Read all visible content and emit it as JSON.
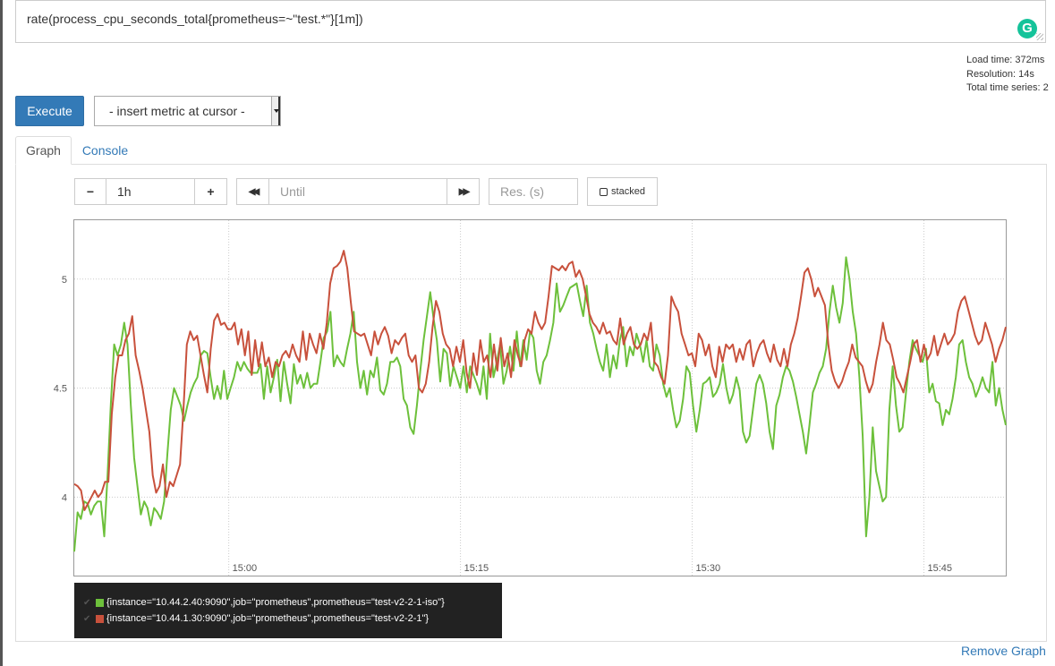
{
  "query": {
    "expression": "rate(process_cpu_seconds_total{prometheus=~\"test.*\"}[1m])",
    "grammarly_badge": "G"
  },
  "stats": {
    "load_time": "Load time: 372ms",
    "resolution": "Resolution: 14s",
    "total_series": "Total time series: 2"
  },
  "toolbar": {
    "execute_label": "Execute",
    "metric_select_value": "- insert metric at cursor -"
  },
  "tabs": [
    {
      "label": "Graph",
      "active": true
    },
    {
      "label": "Console",
      "active": false
    }
  ],
  "graph_controls": {
    "minus_label": "−",
    "range_value": "1h",
    "plus_label": "+",
    "back_label": "◀◀",
    "until_placeholder": "Until",
    "forward_label": "▶▶",
    "res_placeholder": "Res. (s)",
    "stacked_label": "stacked"
  },
  "colors": {
    "series_green": "#6dc03b",
    "series_red": "#c8513c",
    "link_blue": "#337ab7",
    "execute_blue": "#337ab7"
  },
  "chart_data": {
    "type": "line",
    "x_ticks": [
      "15:00",
      "15:15",
      "15:30",
      "15:45"
    ],
    "y_ticks": [
      "4",
      "4.5",
      "5"
    ],
    "ylim": [
      3.64,
      5.27
    ],
    "x_range_minutes": [
      -10.0,
      50.3
    ],
    "grid": true,
    "legend_position": "bottom-left",
    "series": [
      {
        "name": "{instance=\"10.44.2.40:9090\",job=\"prometheus\",prometheus=\"test-v2-2-1-iso\"}",
        "color": "#6dc03b",
        "values": [
          3.75,
          3.93,
          3.9,
          3.98,
          3.97,
          3.92,
          3.96,
          3.98,
          3.98,
          3.82,
          4.1,
          4.43,
          4.7,
          4.65,
          4.7,
          4.8,
          4.7,
          4.42,
          4.18,
          4.05,
          3.92,
          3.98,
          3.95,
          3.87,
          3.95,
          3.93,
          3.9,
          3.98,
          4.2,
          4.4,
          4.5,
          4.46,
          4.42,
          4.35,
          4.42,
          4.48,
          4.52,
          4.55,
          4.65,
          4.67,
          4.66,
          4.55,
          4.45,
          4.51,
          4.45,
          4.58,
          4.45,
          4.5,
          4.55,
          4.62,
          4.58,
          4.62,
          4.59,
          4.57,
          4.57,
          4.57,
          4.61,
          4.45,
          4.6,
          4.48,
          4.55,
          4.63,
          4.44,
          4.62,
          4.52,
          4.43,
          4.61,
          4.52,
          4.56,
          4.5,
          4.57,
          4.5,
          4.52,
          4.52,
          4.62,
          4.73,
          4.76,
          4.85,
          4.6,
          4.65,
          4.62,
          4.6,
          4.68,
          4.75,
          4.85,
          4.62,
          4.5,
          4.58,
          4.47,
          4.58,
          4.55,
          4.64,
          4.49,
          4.47,
          4.52,
          4.62,
          4.62,
          4.64,
          4.6,
          4.45,
          4.42,
          4.32,
          4.29,
          4.42,
          4.58,
          4.72,
          4.83,
          4.94,
          4.82,
          4.72,
          4.53,
          4.68,
          4.66,
          4.51,
          4.6,
          4.55,
          4.5,
          4.6,
          4.48,
          4.6,
          4.56,
          4.52,
          4.47,
          4.6,
          4.45,
          4.75,
          4.55,
          4.62,
          4.7,
          4.52,
          4.58,
          4.69,
          4.58,
          4.76,
          4.6,
          4.72,
          4.63,
          4.76,
          4.73,
          4.58,
          4.52,
          4.62,
          4.65,
          4.72,
          4.8,
          4.98,
          4.85,
          4.88,
          4.92,
          4.96,
          4.97,
          4.98,
          4.9,
          4.83,
          4.97,
          4.8,
          4.75,
          4.68,
          4.62,
          4.58,
          4.7,
          4.55,
          4.65,
          4.59,
          4.72,
          4.78,
          4.6,
          4.69,
          4.65,
          4.75,
          4.7,
          4.62,
          4.72,
          4.6,
          4.58,
          4.7,
          4.65,
          4.52,
          4.46,
          4.5,
          4.4,
          4.32,
          4.35,
          4.45,
          4.6,
          4.57,
          4.42,
          4.3,
          4.4,
          4.52,
          4.53,
          4.55,
          4.46,
          4.48,
          4.52,
          4.61,
          4.5,
          4.43,
          4.47,
          4.55,
          4.49,
          4.3,
          4.25,
          4.28,
          4.4,
          4.52,
          4.56,
          4.52,
          4.43,
          4.3,
          4.22,
          4.42,
          4.47,
          4.55,
          4.6,
          4.58,
          4.53,
          4.46,
          4.38,
          4.3,
          4.2,
          4.33,
          4.48,
          4.52,
          4.57,
          4.6,
          4.68,
          4.85,
          4.97,
          4.87,
          4.8,
          4.89,
          5.1,
          5.0,
          4.85,
          4.75,
          4.55,
          4.28,
          3.82,
          4.0,
          4.32,
          4.12,
          4.05,
          3.98,
          4.0,
          4.4,
          4.6,
          4.42,
          4.3,
          4.32,
          4.48,
          4.62,
          4.72,
          4.68,
          4.65,
          4.62,
          4.68,
          4.48,
          4.52,
          4.44,
          4.43,
          4.33,
          4.4,
          4.38,
          4.45,
          4.55,
          4.7,
          4.72,
          4.62,
          4.55,
          4.52,
          4.46,
          4.5,
          4.55,
          4.5,
          4.48,
          4.62,
          4.42,
          4.5,
          4.4,
          4.33
        ],
        "note_x": "values evenly spaced from 14:49 to 15:50"
      },
      {
        "name": "{instance=\"10.44.1.30:9090\",job=\"prometheus\",prometheus=\"test-v2-2-1\"}",
        "color": "#c8513c",
        "values": [
          4.06,
          4.05,
          4.03,
          3.94,
          3.97,
          4.0,
          4.03,
          4.0,
          4.02,
          4.07,
          4.07,
          4.38,
          4.55,
          4.65,
          4.65,
          4.72,
          4.75,
          4.83,
          4.65,
          4.58,
          4.5,
          4.4,
          4.3,
          4.1,
          4.02,
          4.05,
          4.15,
          4.0,
          4.07,
          4.05,
          4.1,
          4.15,
          4.4,
          4.7,
          4.76,
          4.72,
          4.74,
          4.65,
          4.56,
          4.48,
          4.68,
          4.81,
          4.84,
          4.79,
          4.8,
          4.77,
          4.77,
          4.8,
          4.7,
          4.77,
          4.65,
          4.76,
          4.56,
          4.72,
          4.6,
          4.71,
          4.6,
          4.64,
          4.55,
          4.62,
          4.6,
          4.65,
          4.67,
          4.64,
          4.7,
          4.65,
          4.62,
          4.76,
          4.63,
          4.75,
          4.7,
          4.66,
          4.75,
          4.68,
          4.8,
          4.98,
          5.05,
          5.06,
          5.08,
          5.13,
          5.05,
          4.9,
          4.76,
          4.75,
          4.74,
          4.75,
          4.7,
          4.65,
          4.76,
          4.7,
          4.75,
          4.78,
          4.74,
          4.66,
          4.72,
          4.7,
          4.73,
          4.75,
          4.65,
          4.62,
          4.65,
          4.5,
          4.48,
          4.52,
          4.62,
          4.78,
          4.9,
          4.85,
          4.75,
          4.7,
          4.68,
          4.6,
          4.69,
          4.62,
          4.72,
          4.57,
          4.5,
          4.66,
          4.56,
          4.72,
          4.62,
          4.65,
          4.55,
          4.7,
          4.58,
          4.73,
          4.6,
          4.66,
          4.55,
          4.72,
          4.65,
          4.6,
          4.72,
          4.77,
          4.75,
          4.85,
          4.8,
          4.77,
          4.8,
          4.92,
          5.06,
          5.05,
          5.04,
          5.06,
          5.04,
          5.07,
          5.08,
          5.01,
          5.04,
          5.0,
          4.92,
          4.84,
          4.8,
          4.78,
          4.75,
          4.8,
          4.75,
          4.76,
          4.72,
          4.7,
          4.82,
          4.7,
          4.75,
          4.78,
          4.7,
          4.68,
          4.7,
          4.75,
          4.72,
          4.8,
          4.62,
          4.6,
          4.55,
          4.52,
          4.65,
          4.92,
          4.88,
          4.85,
          4.75,
          4.7,
          4.65,
          4.66,
          4.6,
          4.75,
          4.72,
          4.65,
          4.7,
          4.6,
          4.55,
          4.69,
          4.62,
          4.7,
          4.68,
          4.7,
          4.62,
          4.68,
          4.63,
          4.7,
          4.72,
          4.6,
          4.66,
          4.7,
          4.72,
          4.66,
          4.62,
          4.7,
          4.63,
          4.6,
          4.68,
          4.6,
          4.7,
          4.75,
          4.82,
          4.92,
          5.03,
          5.05,
          5.0,
          4.92,
          4.96,
          4.92,
          4.88,
          4.7,
          4.58,
          4.53,
          4.5,
          4.53,
          4.58,
          4.62,
          4.7,
          4.64,
          4.62,
          4.6,
          4.53,
          4.48,
          4.52,
          4.62,
          4.7,
          4.8,
          4.72,
          4.7,
          4.63,
          4.55,
          4.52,
          4.48,
          4.55,
          4.62,
          4.7,
          4.72,
          4.62,
          4.7,
          4.63,
          4.66,
          4.74,
          4.65,
          4.7,
          4.75,
          4.7,
          4.72,
          4.75,
          4.85,
          4.9,
          4.92,
          4.86,
          4.8,
          4.74,
          4.7,
          4.72,
          4.8,
          4.75,
          4.7,
          4.62,
          4.68,
          4.72,
          4.78
        ],
        "note_x": "values evenly spaced from 14:49 to 15:50"
      }
    ]
  },
  "legend": {
    "items": [
      {
        "label": "{instance=\"10.44.2.40:9090\",job=\"prometheus\",prometheus=\"test-v2-2-1-iso\"}",
        "color": "#6dc03b"
      },
      {
        "label": "{instance=\"10.44.1.30:9090\",job=\"prometheus\",prometheus=\"test-v2-2-1\"}",
        "color": "#c8513c"
      }
    ]
  },
  "remove_graph_label": "Remove Graph"
}
